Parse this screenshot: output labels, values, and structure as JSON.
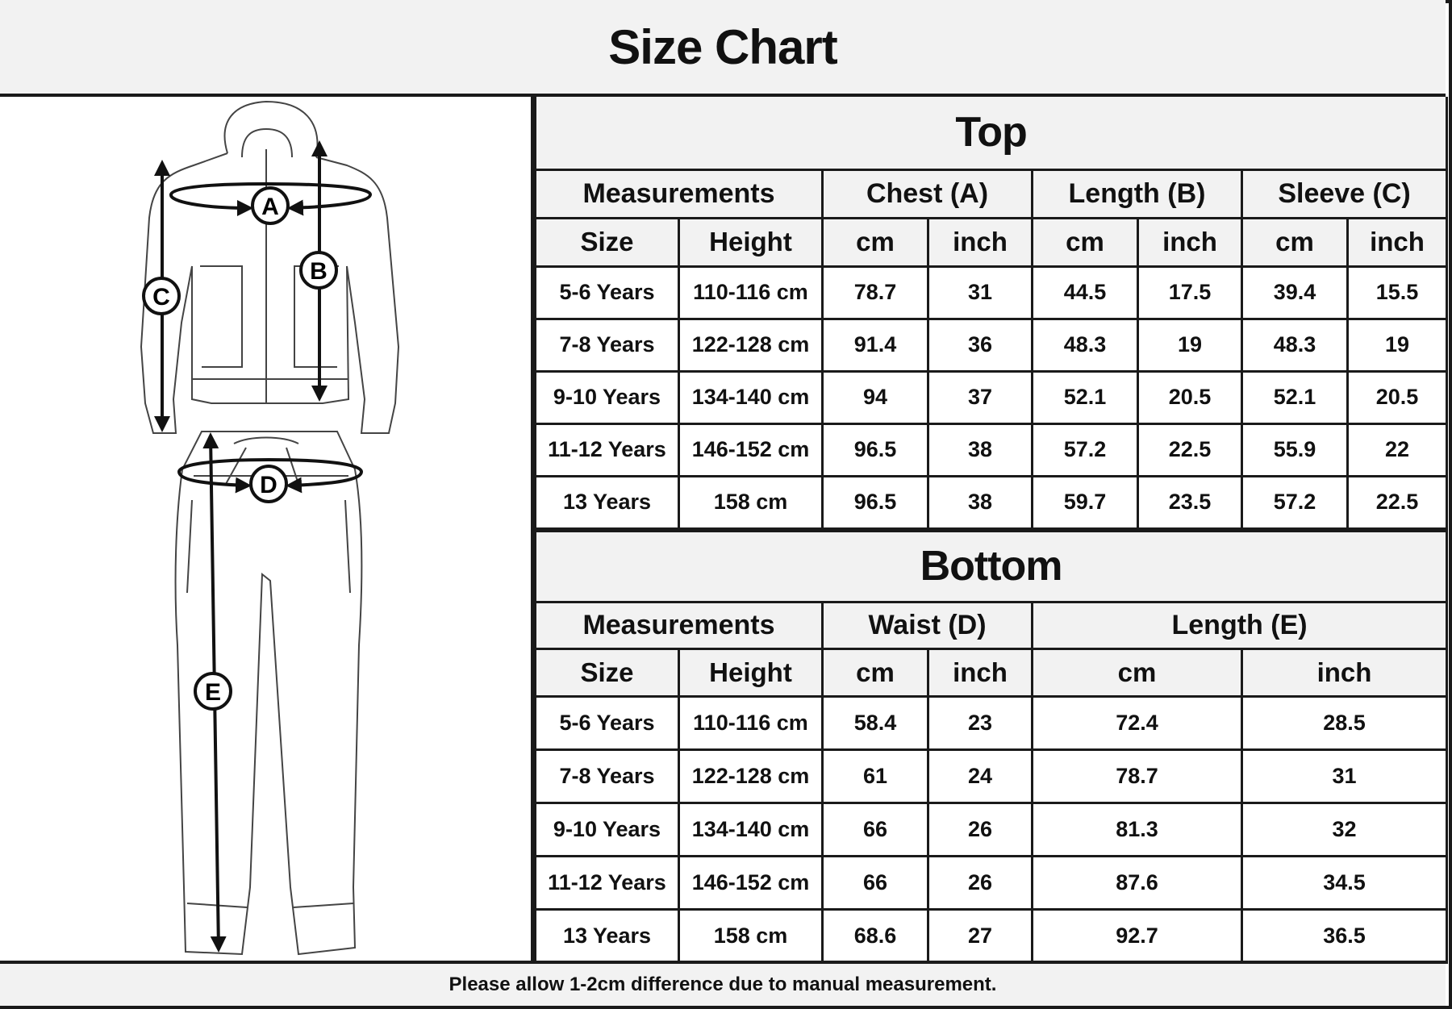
{
  "title": "Size Chart",
  "diagram_labels": [
    "A",
    "B",
    "C",
    "D",
    "E"
  ],
  "top": {
    "heading": "Top",
    "group_headers": [
      "Measurements",
      "Chest (A)",
      "Length (B)",
      "Sleeve (C)"
    ],
    "sub_headers": [
      "Size",
      "Height",
      "cm",
      "inch",
      "cm",
      "inch",
      "cm",
      "inch"
    ],
    "rows": [
      [
        "5-6 Years",
        "110-116 cm",
        "78.7",
        "31",
        "44.5",
        "17.5",
        "39.4",
        "15.5"
      ],
      [
        "7-8 Years",
        "122-128 cm",
        "91.4",
        "36",
        "48.3",
        "19",
        "48.3",
        "19"
      ],
      [
        "9-10 Years",
        "134-140 cm",
        "94",
        "37",
        "52.1",
        "20.5",
        "52.1",
        "20.5"
      ],
      [
        "11-12 Years",
        "146-152 cm",
        "96.5",
        "38",
        "57.2",
        "22.5",
        "55.9",
        "22"
      ],
      [
        "13 Years",
        "158 cm",
        "96.5",
        "38",
        "59.7",
        "23.5",
        "57.2",
        "22.5"
      ]
    ]
  },
  "bottom": {
    "heading": "Bottom",
    "group_headers": [
      "Measurements",
      "Waist (D)",
      "Length (E)"
    ],
    "sub_headers": [
      "Size",
      "Height",
      "cm",
      "inch",
      "cm",
      "inch"
    ],
    "rows": [
      [
        "5-6 Years",
        "110-116 cm",
        "58.4",
        "23",
        "72.4",
        "28.5"
      ],
      [
        "7-8 Years",
        "122-128 cm",
        "61",
        "24",
        "78.7",
        "31"
      ],
      [
        "9-10 Years",
        "134-140 cm",
        "66",
        "26",
        "81.3",
        "32"
      ],
      [
        "11-12 Years",
        "146-152 cm",
        "66",
        "26",
        "87.6",
        "34.5"
      ],
      [
        "13 Years",
        "158 cm",
        "68.6",
        "27",
        "92.7",
        "36.5"
      ]
    ]
  },
  "footer": "Please allow 1-2cm difference due to manual measurement."
}
